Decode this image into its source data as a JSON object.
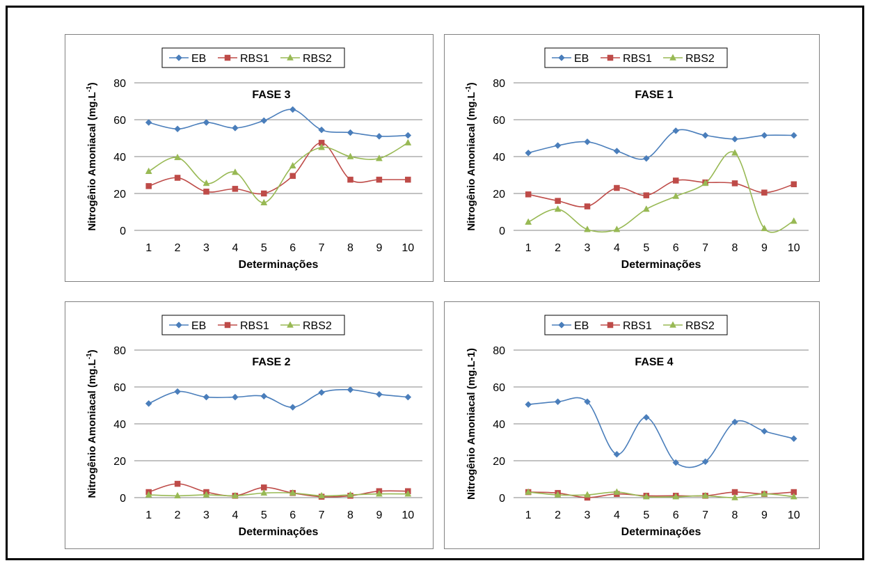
{
  "chart_data": [
    {
      "type": "line",
      "title": "FASE 3",
      "xlabel": "Determinações",
      "ylabel": "Nitrogênio Amoniacal (mg.L",
      "ylabel_sup": "-1",
      "ylabel_close": ")",
      "categories": [
        "1",
        "2",
        "3",
        "4",
        "5",
        "6",
        "7",
        "8",
        "9",
        "10"
      ],
      "ylim": [
        0,
        80
      ],
      "yticks": [
        "0",
        "20",
        "40",
        "60",
        "80"
      ],
      "grid": true,
      "legend": "top",
      "series": [
        {
          "name": "EB",
          "color": "#4a7ebb",
          "marker": "diamond",
          "values": [
            58.5,
            55,
            58.5,
            55.5,
            59.5,
            65.5,
            54.5,
            53,
            51,
            51.5
          ]
        },
        {
          "name": "RBS1",
          "color": "#be4b48",
          "marker": "square",
          "values": [
            24,
            28.5,
            21,
            22.5,
            20,
            29.5,
            47.5,
            27.5,
            27.5,
            27.5
          ]
        },
        {
          "name": "RBS2",
          "color": "#98b954",
          "marker": "triangle",
          "values": [
            32,
            39.5,
            25.5,
            31.5,
            15,
            35,
            45,
            40,
            39,
            47.5
          ]
        }
      ]
    },
    {
      "type": "line",
      "title": "FASE 1",
      "xlabel": "Determinações",
      "ylabel": "Nitrogênio Amoniacal (mg.L",
      "ylabel_sup": "-1",
      "ylabel_close": ")",
      "categories": [
        "1",
        "2",
        "3",
        "4",
        "5",
        "6",
        "7",
        "8",
        "9",
        "10"
      ],
      "ylim": [
        0,
        80
      ],
      "yticks": [
        "0",
        "20",
        "40",
        "60",
        "80"
      ],
      "grid": true,
      "legend": "top",
      "series": [
        {
          "name": "EB",
          "color": "#4a7ebb",
          "marker": "diamond",
          "values": [
            42,
            46,
            48,
            43,
            39,
            54,
            51.5,
            49.5,
            51.5,
            51.5
          ]
        },
        {
          "name": "RBS1",
          "color": "#be4b48",
          "marker": "square",
          "values": [
            19.5,
            16,
            13,
            23,
            19,
            27,
            26,
            25.5,
            20.5,
            25
          ]
        },
        {
          "name": "RBS2",
          "color": "#98b954",
          "marker": "triangle",
          "values": [
            4.5,
            11.5,
            0.5,
            0.5,
            11.5,
            18.5,
            25.5,
            42,
            1,
            5
          ]
        }
      ]
    },
    {
      "type": "line",
      "title": "FASE 2",
      "xlabel": "Determinações",
      "ylabel": "Nitrogênio Amoniacal (mg.L",
      "ylabel_sup": "-1",
      "ylabel_close": ")",
      "categories": [
        "1",
        "2",
        "3",
        "4",
        "5",
        "6",
        "7",
        "8",
        "9",
        "10"
      ],
      "ylim": [
        0,
        80
      ],
      "yticks": [
        "0",
        "20",
        "40",
        "60",
        "80"
      ],
      "grid": true,
      "legend": "top",
      "series": [
        {
          "name": "EB",
          "color": "#4a7ebb",
          "marker": "diamond",
          "values": [
            51,
            57.5,
            54.5,
            54.5,
            55,
            49,
            57,
            58.5,
            56,
            54.5
          ]
        },
        {
          "name": "RBS1",
          "color": "#be4b48",
          "marker": "square",
          "values": [
            3,
            7.5,
            3,
            1,
            5.5,
            2.5,
            0.5,
            1,
            3.5,
            3.5
          ]
        },
        {
          "name": "RBS2",
          "color": "#98b954",
          "marker": "triangle",
          "values": [
            1.5,
            1,
            1.5,
            1,
            2.5,
            2.5,
            1,
            1.5,
            2,
            2
          ]
        }
      ]
    },
    {
      "type": "line",
      "title": "FASE 4",
      "xlabel": "Determinações",
      "ylabel": "Nitrogênio Amoniacal (mg.L-1)",
      "ylabel_sup": "",
      "ylabel_close": "",
      "categories": [
        "1",
        "2",
        "3",
        "4",
        "5",
        "6",
        "7",
        "8",
        "9",
        "10"
      ],
      "ylim": [
        0,
        80
      ],
      "yticks": [
        "0",
        "20",
        "40",
        "60",
        "80"
      ],
      "grid": true,
      "legend": "top",
      "series": [
        {
          "name": "EB",
          "color": "#4a7ebb",
          "marker": "diamond",
          "values": [
            50.5,
            52,
            52,
            23.5,
            43.5,
            19,
            19.5,
            41,
            36,
            32
          ]
        },
        {
          "name": "RBS1",
          "color": "#be4b48",
          "marker": "square",
          "values": [
            3,
            2.5,
            0,
            2,
            1,
            1,
            1,
            3,
            2,
            3
          ]
        },
        {
          "name": "RBS2",
          "color": "#98b954",
          "marker": "triangle",
          "values": [
            3,
            1.5,
            1.5,
            3,
            0.5,
            0.5,
            1,
            0,
            2,
            0.5
          ]
        }
      ]
    }
  ]
}
